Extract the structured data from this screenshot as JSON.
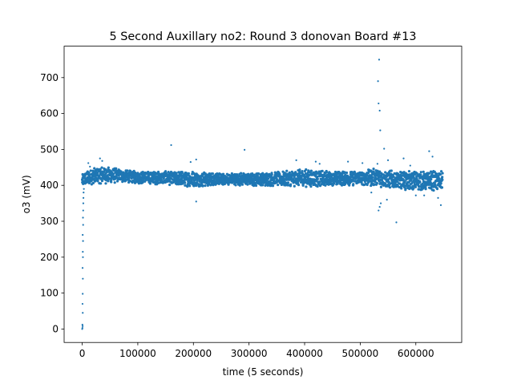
{
  "chart_data": {
    "type": "scatter",
    "title": "5 Second Auxillary no2: Round 3 donovan Board #13",
    "xlabel": "time (5 seconds)",
    "ylabel": "o3 (mV)",
    "xlim": [
      -32500,
      682500
    ],
    "ylim": [
      -37.5,
      787.5
    ],
    "x_ticks": [
      0,
      100000,
      200000,
      300000,
      400000,
      500000,
      600000
    ],
    "x_tick_labels": [
      "0",
      "100000",
      "200000",
      "300000",
      "400000",
      "500000",
      "600000"
    ],
    "y_ticks": [
      0,
      100,
      200,
      300,
      400,
      500,
      600,
      700
    ],
    "y_tick_labels": [
      "0",
      "100",
      "200",
      "300",
      "400",
      "500",
      "600",
      "700"
    ],
    "grid": false,
    "legend": "none",
    "series_color": "#1f77b4",
    "series": [
      {
        "x_range": [
          0,
          648000
        ],
        "band": {
          "x": [
            0,
            5000,
            15000,
            30000,
            50000,
            70000,
            100000,
            150000,
            200000,
            250000,
            300000,
            350000,
            400000,
            450000,
            500000,
            530000,
            560000,
            600000,
            648000
          ],
          "low": [
            395,
            400,
            402,
            405,
            405,
            408,
            405,
            402,
            395,
            400,
            398,
            398,
            395,
            398,
            400,
            395,
            390,
            385,
            385
          ],
          "high": [
            430,
            440,
            445,
            455,
            450,
            445,
            440,
            440,
            440,
            435,
            435,
            438,
            445,
            440,
            440,
            448,
            440,
            440,
            440
          ]
        },
        "points": [
          [
            0,
            0
          ],
          [
            500,
            3
          ],
          [
            800,
            8
          ],
          [
            400,
            12
          ],
          [
            1000,
            45
          ],
          [
            600,
            70
          ],
          [
            900,
            98
          ],
          [
            1200,
            140
          ],
          [
            700,
            170
          ],
          [
            1300,
            200
          ],
          [
            1100,
            215
          ],
          [
            1500,
            245
          ],
          [
            900,
            262
          ],
          [
            1700,
            290
          ],
          [
            1400,
            310
          ],
          [
            1800,
            330
          ],
          [
            2000,
            350
          ],
          [
            2200,
            365
          ],
          [
            2500,
            380
          ],
          [
            3000,
            390
          ],
          [
            11000,
            462
          ],
          [
            14000,
            452
          ],
          [
            32000,
            475
          ],
          [
            36000,
            468
          ],
          [
            160000,
            512
          ],
          [
            195000,
            465
          ],
          [
            205000,
            472
          ],
          [
            205000,
            355
          ],
          [
            292000,
            499
          ],
          [
            385000,
            470
          ],
          [
            420000,
            466
          ],
          [
            427000,
            460
          ],
          [
            478000,
            466
          ],
          [
            504000,
            462
          ],
          [
            534000,
            750
          ],
          [
            532000,
            690
          ],
          [
            533000,
            628
          ],
          [
            535000,
            608
          ],
          [
            536000,
            553
          ],
          [
            531000,
            460
          ],
          [
            533000,
            330
          ],
          [
            535000,
            340
          ],
          [
            537000,
            350
          ],
          [
            543000,
            502
          ],
          [
            550000,
            470
          ],
          [
            565000,
            297
          ],
          [
            578000,
            475
          ],
          [
            590000,
            455
          ],
          [
            624000,
            495
          ],
          [
            630000,
            480
          ],
          [
            645000,
            345
          ],
          [
            640000,
            365
          ],
          [
            548000,
            360
          ],
          [
            520000,
            380
          ],
          [
            600000,
            372
          ],
          [
            615000,
            372
          ]
        ]
      }
    ]
  }
}
